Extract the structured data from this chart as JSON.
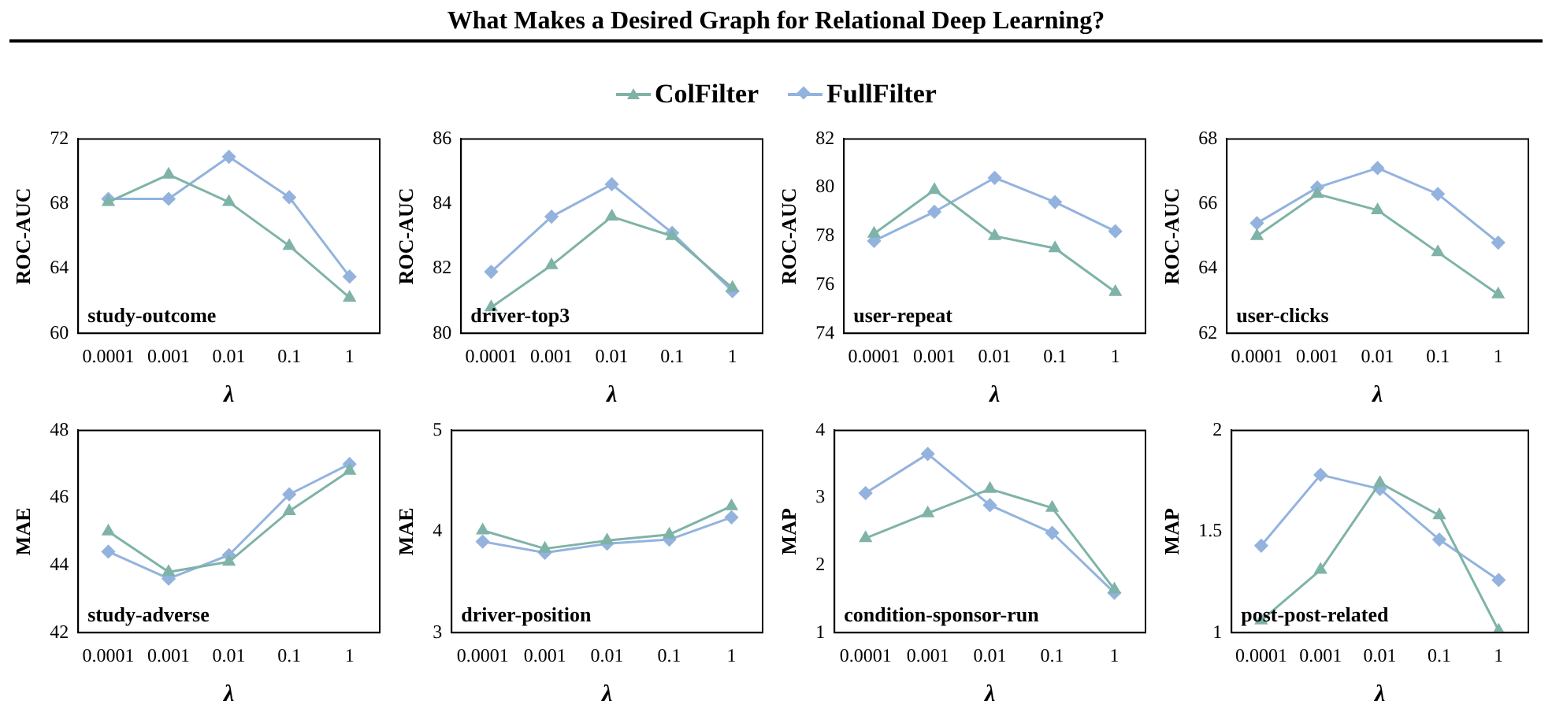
{
  "chart_data": [
    {
      "type": "other",
      "title": "What Makes a Desired Graph for Relational Deep Learning?"
    },
    {
      "type": "line",
      "legend": "top",
      "categories": [
        "0.0001",
        "0.001",
        "0.01",
        "0.1",
        "1"
      ],
      "xlabel": "λ",
      "ylabel": "ROC-AUC",
      "ylim": [
        60,
        72
      ],
      "yticks": [
        60,
        64,
        68,
        72
      ],
      "grid": false,
      "annotations": [
        "study-outcome"
      ],
      "series": [
        {
          "name": "ColFilter",
          "color": "#7fb3a8",
          "marker": "triangle",
          "values": [
            68.1,
            69.8,
            68.1,
            65.4,
            62.2
          ]
        },
        {
          "name": "FullFilter",
          "color": "#93b3de",
          "marker": "diamond",
          "values": [
            68.3,
            68.3,
            70.9,
            68.4,
            63.5
          ]
        }
      ]
    },
    {
      "type": "line",
      "categories": [
        "0.0001",
        "0.001",
        "0.01",
        "0.1",
        "1"
      ],
      "xlabel": "λ",
      "ylabel": "ROC-AUC",
      "ylim": [
        80,
        86
      ],
      "yticks": [
        80,
        82,
        84,
        86
      ],
      "grid": false,
      "annotations": [
        "driver-top3"
      ],
      "series": [
        {
          "color": "#7fb3a8",
          "marker": "triangle",
          "values": [
            80.8,
            82.1,
            83.6,
            83.0,
            81.4
          ]
        },
        {
          "color": "#93b3de",
          "marker": "diamond",
          "values": [
            81.9,
            83.6,
            84.6,
            83.1,
            81.3
          ]
        }
      ]
    },
    {
      "type": "line",
      "categories": [
        "0.0001",
        "0.001",
        "0.01",
        "0.1",
        "1"
      ],
      "xlabel": "λ",
      "ylabel": "ROC-AUC",
      "ylim": [
        74,
        82
      ],
      "yticks": [
        74,
        76,
        78,
        80,
        82
      ],
      "grid": false,
      "annotations": [
        "user-repeat"
      ],
      "series": [
        {
          "color": "#7fb3a8",
          "marker": "triangle",
          "values": [
            78.1,
            79.9,
            78.0,
            77.5,
            75.7
          ]
        },
        {
          "color": "#93b3de",
          "marker": "diamond",
          "values": [
            77.8,
            79.0,
            80.4,
            79.4,
            78.2
          ]
        }
      ]
    },
    {
      "type": "line",
      "categories": [
        "0.0001",
        "0.001",
        "0.01",
        "0.1",
        "1"
      ],
      "xlabel": "λ",
      "ylabel": "ROC-AUC",
      "ylim": [
        62,
        68
      ],
      "yticks": [
        62,
        64,
        66,
        68
      ],
      "grid": false,
      "annotations": [
        "user-clicks"
      ],
      "series": [
        {
          "color": "#7fb3a8",
          "marker": "triangle",
          "values": [
            65.0,
            66.3,
            65.8,
            64.5,
            63.2
          ]
        },
        {
          "color": "#93b3de",
          "marker": "diamond",
          "values": [
            65.4,
            66.5,
            67.1,
            66.3,
            64.8
          ]
        }
      ]
    },
    {
      "type": "line",
      "categories": [
        "0.0001",
        "0.001",
        "0.01",
        "0.1",
        "1"
      ],
      "xlabel": "λ",
      "ylabel": "MAE",
      "ylim": [
        42,
        48
      ],
      "yticks": [
        42,
        44,
        46,
        48
      ],
      "grid": false,
      "annotations": [
        "study-adverse"
      ],
      "series": [
        {
          "color": "#7fb3a8",
          "marker": "triangle",
          "values": [
            45.0,
            43.8,
            44.1,
            45.6,
            46.8
          ]
        },
        {
          "color": "#93b3de",
          "marker": "diamond",
          "values": [
            44.4,
            43.6,
            44.3,
            46.1,
            47.0
          ]
        }
      ]
    },
    {
      "type": "line",
      "categories": [
        "0.0001",
        "0.001",
        "0.01",
        "0.1",
        "1"
      ],
      "xlabel": "λ",
      "ylabel": "MAE",
      "ylim": [
        3,
        5
      ],
      "yticks": [
        3,
        4,
        5
      ],
      "grid": false,
      "annotations": [
        "driver-position"
      ],
      "series": [
        {
          "color": "#7fb3a8",
          "marker": "triangle",
          "values": [
            4.01,
            3.83,
            3.91,
            3.97,
            4.25
          ]
        },
        {
          "color": "#93b3de",
          "marker": "diamond",
          "values": [
            3.9,
            3.79,
            3.88,
            3.92,
            4.14
          ]
        }
      ]
    },
    {
      "type": "line",
      "categories": [
        "0.0001",
        "0.001",
        "0.01",
        "0.1",
        "1"
      ],
      "xlabel": "λ",
      "ylabel": "MAP",
      "ylim": [
        1,
        4
      ],
      "yticks": [
        1,
        2,
        3,
        4
      ],
      "grid": false,
      "annotations": [
        "condition-sponsor-run"
      ],
      "series": [
        {
          "color": "#7fb3a8",
          "marker": "triangle",
          "values": [
            2.4,
            2.77,
            3.13,
            2.85,
            1.64
          ]
        },
        {
          "color": "#93b3de",
          "marker": "diamond",
          "values": [
            3.07,
            3.65,
            2.89,
            2.48,
            1.59
          ]
        }
      ]
    },
    {
      "type": "line",
      "categories": [
        "0.0001",
        "0.001",
        "0.01",
        "0.1",
        "1"
      ],
      "xlabel": "λ",
      "ylabel": "MAP",
      "ylim": [
        1,
        2
      ],
      "yticks": [
        1,
        {
          "value": 1.5,
          "label": "1.5"
        },
        2
      ],
      "grid": false,
      "annotations": [
        "post-post-related"
      ],
      "series": [
        {
          "color": "#7fb3a8",
          "marker": "triangle",
          "values": [
            1.06,
            1.31,
            1.74,
            1.58,
            1.01
          ]
        },
        {
          "color": "#93b3de",
          "marker": "diamond",
          "values": [
            1.43,
            1.78,
            1.71,
            1.46,
            1.26
          ]
        }
      ]
    }
  ]
}
